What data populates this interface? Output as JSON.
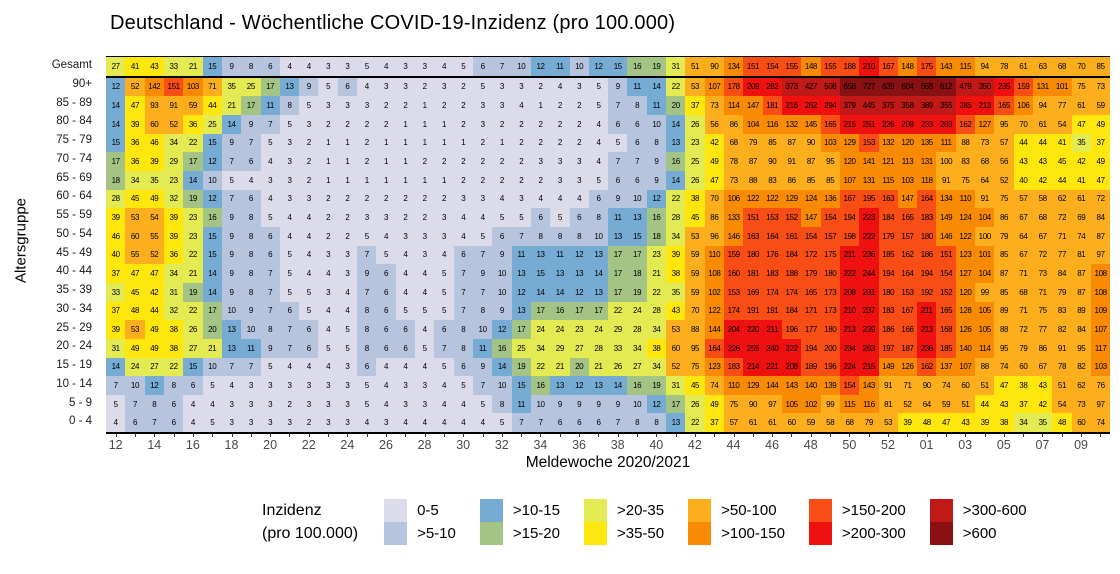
{
  "title": "Deutschland - Wöchentliche COVID-19-Inzidenz (pro 100.000)",
  "chart_data": {
    "type": "heatmap",
    "title": "Deutschland - Wöchentliche COVID-19-Inzidenz (pro 100.000)",
    "xlabel": "Meldewoche 2020/2021",
    "ylabel": "Altersgruppe",
    "x_weeks": [
      "12",
      "13",
      "14",
      "15",
      "16",
      "17",
      "18",
      "19",
      "20",
      "21",
      "22",
      "23",
      "24",
      "25",
      "26",
      "27",
      "28",
      "29",
      "30",
      "31",
      "32",
      "33",
      "34",
      "35",
      "36",
      "37",
      "38",
      "39",
      "40",
      "41",
      "42",
      "43",
      "44",
      "45",
      "46",
      "47",
      "48",
      "49",
      "50",
      "51",
      "52",
      "53",
      "01",
      "02",
      "03",
      "04",
      "05",
      "06",
      "07",
      "08",
      "09",
      "10"
    ],
    "rows": [
      {
        "label": "Gesamt",
        "values": [
          27,
          41,
          43,
          33,
          21,
          15,
          9,
          8,
          6,
          4,
          4,
          3,
          3,
          5,
          4,
          3,
          3,
          4,
          5,
          6,
          7,
          10,
          12,
          11,
          10,
          12,
          15,
          16,
          19,
          31,
          51,
          90,
          134,
          151,
          154,
          155,
          148,
          155,
          188,
          210,
          167,
          148,
          175,
          143,
          115,
          94,
          78,
          61,
          63,
          68,
          70,
          85
        ]
      },
      {
        "label": "90+",
        "values": [
          12,
          52,
          142,
          151,
          103,
          71,
          35,
          25,
          17,
          13,
          9,
          5,
          6,
          4,
          3,
          3,
          2,
          3,
          2,
          5,
          3,
          3,
          2,
          4,
          3,
          5,
          9,
          11,
          14,
          22,
          53,
          107,
          178,
          209,
          282,
          373,
          427,
          508,
          658,
          727,
          639,
          604,
          658,
          612,
          479,
          350,
          235,
          159,
          131,
          101,
          75,
          73
        ]
      },
      {
        "label": "85 - 89",
        "values": [
          14,
          47,
          93,
          91,
          59,
          44,
          21,
          17,
          11,
          8,
          5,
          3,
          3,
          3,
          2,
          2,
          1,
          2,
          2,
          3,
          3,
          4,
          1,
          2,
          2,
          5,
          7,
          8,
          11,
          20,
          37,
          73,
          114,
          147,
          181,
          216,
          262,
          294,
          379,
          445,
          375,
          358,
          389,
          355,
          285,
          213,
          165,
          106,
          94,
          77,
          61,
          59
        ]
      },
      {
        "label": "80 - 84",
        "values": [
          14,
          39,
          60,
          52,
          36,
          25,
          14,
          9,
          7,
          5,
          3,
          2,
          2,
          2,
          2,
          1,
          1,
          1,
          2,
          3,
          2,
          2,
          2,
          2,
          2,
          4,
          6,
          6,
          10,
          14,
          26,
          56,
          86,
          104,
          116,
          132,
          145,
          165,
          215,
          251,
          226,
          209,
          233,
          203,
          162,
          127,
          95,
          70,
          61,
          54,
          47,
          49
        ]
      },
      {
        "label": "75 - 79",
        "values": [
          15,
          36,
          46,
          34,
          22,
          15,
          9,
          7,
          5,
          3,
          2,
          1,
          1,
          2,
          1,
          1,
          1,
          1,
          1,
          2,
          1,
          2,
          2,
          2,
          2,
          4,
          5,
          6,
          8,
          13,
          23,
          42,
          68,
          79,
          85,
          87,
          90,
          103,
          129,
          153,
          132,
          120,
          135,
          111,
          88,
          73,
          57,
          44,
          44,
          41,
          35,
          37
        ]
      },
      {
        "label": "70 - 74",
        "values": [
          17,
          36,
          39,
          29,
          17,
          12,
          7,
          6,
          4,
          3,
          2,
          1,
          1,
          2,
          1,
          1,
          2,
          2,
          2,
          2,
          2,
          2,
          3,
          3,
          3,
          4,
          7,
          7,
          9,
          16,
          25,
          49,
          78,
          87,
          90,
          91,
          87,
          95,
          120,
          141,
          121,
          113,
          131,
          100,
          83,
          68,
          56,
          43,
          43,
          45,
          42,
          49
        ]
      },
      {
        "label": "65 - 69",
        "values": [
          18,
          34,
          35,
          23,
          14,
          10,
          5,
          4,
          3,
          3,
          2,
          1,
          1,
          1,
          1,
          1,
          1,
          1,
          2,
          2,
          2,
          2,
          2,
          3,
          3,
          5,
          6,
          6,
          9,
          14,
          26,
          47,
          73,
          88,
          83,
          86,
          85,
          85,
          107,
          131,
          115,
          103,
          118,
          91,
          75,
          64,
          52,
          40,
          42,
          44,
          41,
          47
        ]
      },
      {
        "label": "60 - 64",
        "values": [
          28,
          45,
          49,
          32,
          19,
          12,
          7,
          6,
          4,
          3,
          3,
          2,
          2,
          2,
          2,
          2,
          2,
          2,
          3,
          3,
          4,
          3,
          4,
          4,
          4,
          6,
          9,
          10,
          12,
          22,
          38,
          70,
          106,
          122,
          122,
          129,
          124,
          136,
          167,
          195,
          163,
          147,
          164,
          134,
          110,
          91,
          75,
          57,
          58,
          62,
          61,
          72
        ]
      },
      {
        "label": "55 - 59",
        "values": [
          39,
          53,
          54,
          39,
          23,
          16,
          9,
          8,
          5,
          4,
          4,
          2,
          2,
          3,
          3,
          2,
          2,
          3,
          4,
          4,
          5,
          5,
          6,
          5,
          6,
          8,
          11,
          13,
          16,
          28,
          45,
          86,
          133,
          151,
          153,
          152,
          147,
          154,
          194,
          223,
          184,
          165,
          183,
          149,
          124,
          104,
          86,
          67,
          68,
          72,
          69,
          84
        ]
      },
      {
        "label": "50 - 54",
        "values": [
          46,
          60,
          55,
          39,
          23,
          15,
          9,
          8,
          6,
          4,
          4,
          2,
          2,
          5,
          4,
          3,
          3,
          3,
          4,
          5,
          6,
          7,
          8,
          8,
          8,
          10,
          13,
          15,
          18,
          34,
          53,
          96,
          146,
          163,
          164,
          161,
          154,
          157,
          198,
          222,
          179,
          157,
          180,
          146,
          122,
          100,
          79,
          64,
          67,
          71,
          74,
          87
        ]
      },
      {
        "label": "45 - 49",
        "values": [
          40,
          55,
          52,
          36,
          22,
          15,
          9,
          8,
          6,
          5,
          4,
          3,
          3,
          7,
          5,
          4,
          3,
          4,
          6,
          7,
          9,
          11,
          13,
          11,
          12,
          13,
          17,
          17,
          23,
          39,
          59,
          110,
          159,
          180,
          176,
          184,
          172,
          175,
          211,
          236,
          185,
          162,
          186,
          151,
          123,
          101,
          85,
          67,
          72,
          77,
          81,
          97
        ]
      },
      {
        "label": "40 - 44",
        "values": [
          37,
          47,
          47,
          34,
          21,
          14,
          9,
          8,
          7,
          5,
          4,
          4,
          3,
          9,
          6,
          4,
          4,
          5,
          7,
          9,
          10,
          13,
          15,
          13,
          13,
          14,
          17,
          18,
          21,
          38,
          59,
          108,
          160,
          181,
          183,
          188,
          179,
          180,
          222,
          244,
          194,
          164,
          194,
          154,
          127,
          104,
          87,
          71,
          73,
          84,
          87,
          108
        ]
      },
      {
        "label": "35 - 39",
        "values": [
          33,
          45,
          42,
          31,
          19,
          14,
          9,
          8,
          7,
          5,
          5,
          3,
          4,
          7,
          6,
          4,
          4,
          5,
          7,
          7,
          10,
          12,
          14,
          14,
          12,
          13,
          17,
          19,
          22,
          35,
          59,
          102,
          153,
          169,
          174,
          174,
          165,
          173,
          208,
          231,
          180,
          153,
          192,
          152,
          120,
          99,
          85,
          68,
          71,
          79,
          87,
          108
        ]
      },
      {
        "label": "30 - 34",
        "values": [
          37,
          48,
          44,
          32,
          22,
          17,
          10,
          9,
          7,
          6,
          5,
          4,
          4,
          8,
          6,
          5,
          5,
          5,
          7,
          8,
          9,
          13,
          17,
          16,
          17,
          17,
          22,
          24,
          28,
          43,
          70,
          122,
          174,
          191,
          191,
          184,
          171,
          173,
          210,
          237,
          183,
          167,
          211,
          165,
          128,
          105,
          89,
          71,
          75,
          83,
          89,
          109
        ]
      },
      {
        "label": "25 - 29",
        "values": [
          39,
          53,
          49,
          38,
          26,
          20,
          13,
          10,
          8,
          7,
          6,
          4,
          5,
          8,
          6,
          6,
          4,
          6,
          8,
          10,
          12,
          17,
          24,
          24,
          23,
          24,
          29,
          28,
          34,
          53,
          88,
          144,
          204,
          220,
          211,
          196,
          177,
          180,
          213,
          239,
          186,
          166,
          213,
          168,
          126,
          105,
          88,
          72,
          77,
          82,
          84,
          107
        ]
      },
      {
        "label": "20 - 24",
        "values": [
          31,
          49,
          49,
          38,
          27,
          21,
          13,
          11,
          9,
          7,
          6,
          5,
          5,
          8,
          6,
          6,
          5,
          7,
          8,
          11,
          16,
          25,
          34,
          29,
          27,
          28,
          33,
          34,
          38,
          60,
          95,
          164,
          226,
          255,
          240,
          222,
          194,
          200,
          234,
          263,
          197,
          187,
          236,
          185,
          140,
          114,
          95,
          79,
          86,
          91,
          95,
          117
        ]
      },
      {
        "label": "15 - 19",
        "values": [
          14,
          24,
          27,
          22,
          15,
          10,
          7,
          7,
          5,
          4,
          4,
          4,
          3,
          6,
          4,
          4,
          4,
          5,
          6,
          9,
          14,
          19,
          22,
          21,
          20,
          21,
          26,
          27,
          34,
          52,
          75,
          123,
          183,
          214,
          221,
          208,
          189,
          196,
          224,
          215,
          149,
          126,
          162,
          137,
          107,
          88,
          74,
          60,
          67,
          78,
          82,
          103
        ]
      },
      {
        "label": "10 - 14",
        "values": [
          7,
          10,
          12,
          8,
          6,
          5,
          4,
          3,
          3,
          3,
          3,
          3,
          3,
          5,
          4,
          3,
          3,
          4,
          5,
          7,
          10,
          15,
          16,
          13,
          12,
          13,
          14,
          16,
          19,
          31,
          45,
          74,
          110,
          129,
          144,
          143,
          140,
          139,
          154,
          143,
          91,
          71,
          90,
          74,
          60,
          51,
          47,
          38,
          43,
          51,
          62,
          76
        ]
      },
      {
        "label": "5 - 9",
        "values": [
          5,
          7,
          8,
          6,
          4,
          4,
          3,
          3,
          3,
          2,
          3,
          3,
          3,
          5,
          4,
          3,
          3,
          4,
          4,
          5,
          8,
          11,
          10,
          9,
          9,
          9,
          9,
          10,
          12,
          17,
          26,
          49,
          75,
          90,
          97,
          105,
          102,
          99,
          115,
          116,
          81,
          52,
          64,
          59,
          51,
          44,
          43,
          37,
          42,
          54,
          73,
          97
        ]
      },
      {
        "label": "0 - 4",
        "values": [
          4,
          6,
          7,
          6,
          4,
          5,
          3,
          3,
          3,
          3,
          2,
          3,
          3,
          4,
          3,
          4,
          4,
          4,
          4,
          4,
          5,
          7,
          7,
          6,
          6,
          6,
          7,
          8,
          8,
          13,
          22,
          37,
          57,
          61,
          61,
          60,
          59,
          58,
          68,
          79,
          53,
          39,
          48,
          47,
          43,
          39,
          38,
          34,
          35,
          48,
          60,
          74
        ]
      }
    ],
    "legend": {
      "title_line1": "Inzidenz",
      "title_line2": "(pro 100.000)",
      "bins": [
        {
          "label": "0-5",
          "color": "#dcdbea",
          "max": 5
        },
        {
          "label": ">5-10",
          "color": "#b7c4dd",
          "max": 10
        },
        {
          "label": ">10-15",
          "color": "#76acd3",
          "max": 15
        },
        {
          "label": ">15-20",
          "color": "#a3c484",
          "max": 20
        },
        {
          "label": ">20-35",
          "color": "#e4eb52",
          "max": 35
        },
        {
          "label": ">35-50",
          "color": "#ffe60d",
          "max": 50
        },
        {
          "label": ">50-100",
          "color": "#fdae1c",
          "max": 100
        },
        {
          "label": ">100-150",
          "color": "#f98b04",
          "max": 150
        },
        {
          "label": ">150-200",
          "color": "#f94d16",
          "max": 200
        },
        {
          "label": ">200-300",
          "color": "#ef1010",
          "max": 300
        },
        {
          "label": ">300-600",
          "color": "#c11818",
          "max": 600
        },
        {
          "label": ">600",
          "color": "#8a1113",
          "max": null
        }
      ],
      "position": "bottom"
    },
    "layout": {
      "grid": "off",
      "gesamt_separator": true,
      "x_tick_every": 2
    }
  }
}
